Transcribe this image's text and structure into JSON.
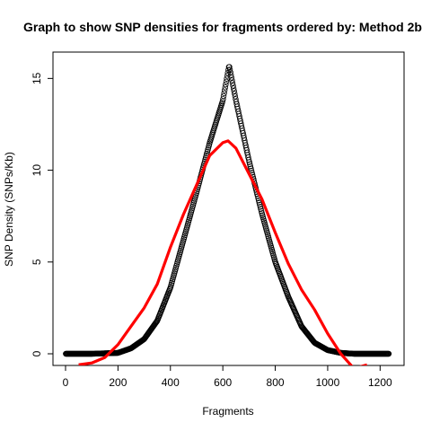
{
  "chart_data": {
    "type": "scatter",
    "title": "Graph to show SNP densities for fragments ordered by: Method 2b",
    "xlabel": "Fragments",
    "ylabel": "SNP Density (SNPs/Kb)",
    "xlim": [
      0,
      1240
    ],
    "ylim": [
      0,
      15.8
    ],
    "xticks": [
      0,
      200,
      400,
      600,
      800,
      1000,
      1200
    ],
    "yticks": [
      0,
      5,
      10,
      15
    ],
    "grid": false,
    "legend": "none",
    "series": [
      {
        "kind": "points",
        "marker": "open-circle",
        "color": "#000000",
        "x_range": [
          1,
          1233
        ],
        "peak_x": 624,
        "peak_y": 15.7,
        "shape": "symmetric triangular peak; about 0 below x≈150 and above x≈1100",
        "x": [
          0,
          100,
          200,
          250,
          300,
          350,
          400,
          450,
          500,
          550,
          600,
          624,
          650,
          700,
          750,
          800,
          850,
          900,
          950,
          1000,
          1050,
          1100,
          1150,
          1200,
          1233
        ],
        "y": [
          0,
          0,
          0.05,
          0.3,
          0.8,
          1.8,
          3.6,
          6.2,
          8.8,
          11.5,
          13.8,
          15.7,
          13.8,
          10.5,
          7.6,
          5.0,
          3.1,
          1.5,
          0.6,
          0.2,
          0.05,
          0,
          0,
          0,
          0
        ]
      },
      {
        "kind": "line",
        "color": "#ff0000",
        "x": [
          50,
          100,
          150,
          200,
          250,
          300,
          350,
          400,
          450,
          500,
          550,
          600,
          620,
          650,
          700,
          750,
          800,
          850,
          900,
          950,
          1000,
          1050,
          1100,
          1150
        ],
        "y": [
          -0.6,
          -0.5,
          -0.2,
          0.5,
          1.5,
          2.5,
          3.8,
          5.8,
          7.6,
          9.2,
          10.8,
          11.5,
          11.6,
          11.2,
          9.8,
          8.4,
          6.6,
          4.9,
          3.5,
          2.4,
          1.1,
          0.0,
          -0.8,
          -0.6
        ]
      }
    ]
  }
}
